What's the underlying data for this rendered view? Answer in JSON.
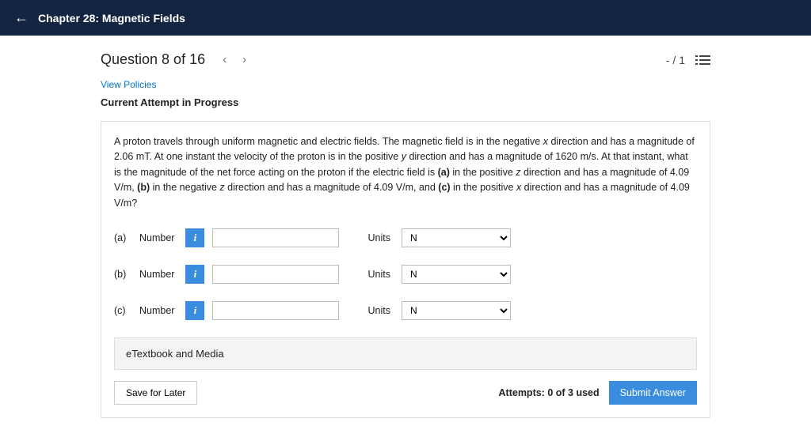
{
  "header": {
    "chapter": "Chapter 28: Magnetic Fields"
  },
  "question": {
    "title": "Question 8 of 16",
    "score": "- / 1",
    "policies": "View Policies",
    "attempt_status": "Current Attempt in Progress"
  },
  "problem": {
    "text_parts": [
      "A proton travels through uniform magnetic and electric fields. The magnetic field is in the negative ",
      " direction and has a magnitude of 2.06 mT. At one instant the velocity of the proton is in the positive ",
      " direction and has a magnitude of 1620 m/s. At that instant, what is the magnitude of the net force acting on the proton if the electric field is ",
      " in the positive ",
      " direction and has a magnitude of 4.09 V/m, ",
      " in the negative ",
      " direction and has a magnitude of 4.09 V/m, and ",
      " in the positive ",
      " direction and has a magnitude of 4.09 V/m?"
    ],
    "italics": {
      "x": "x",
      "y": "y",
      "z": "z"
    },
    "bold": {
      "a": "(a)",
      "b": "(b)",
      "c": "(c)"
    }
  },
  "parts": [
    {
      "label": "(a)",
      "number_label": "Number",
      "units_label": "Units",
      "unit_value": "N"
    },
    {
      "label": "(b)",
      "number_label": "Number",
      "units_label": "Units",
      "unit_value": "N"
    },
    {
      "label": "(c)",
      "number_label": "Number",
      "units_label": "Units",
      "unit_value": "N"
    }
  ],
  "media": {
    "label": "eTextbook and Media"
  },
  "footer": {
    "save": "Save for Later",
    "attempts": "Attempts: 0 of 3 used",
    "submit": "Submit Answer"
  }
}
